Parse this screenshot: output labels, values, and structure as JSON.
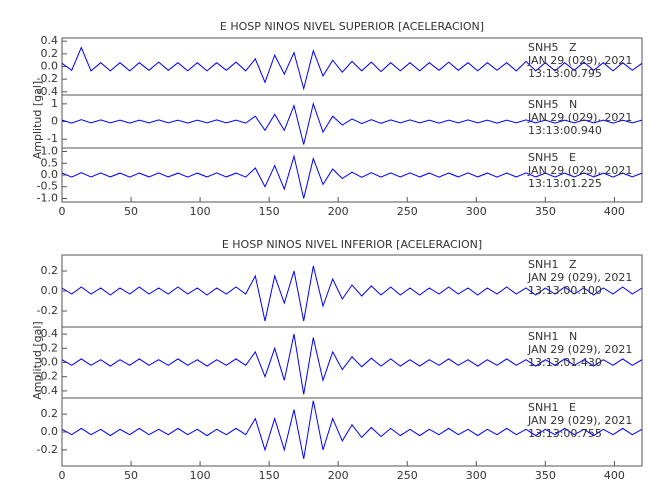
{
  "chart_data": [
    {
      "type": "line",
      "title": "E HOSP NINOS NIVEL SUPERIOR [ACELERACION]",
      "y_label": "Amplitud [gal]",
      "xlim": [
        0,
        420
      ],
      "xticks": [
        0,
        50,
        100,
        150,
        200,
        250,
        300,
        350,
        400
      ],
      "x": [
        0,
        7,
        14,
        21,
        28,
        35,
        42,
        49,
        56,
        63,
        70,
        77,
        84,
        91,
        98,
        105,
        112,
        119,
        126,
        133,
        140,
        147,
        154,
        161,
        168,
        175,
        182,
        189,
        196,
        203,
        210,
        217,
        224,
        231,
        238,
        245,
        252,
        259,
        266,
        273,
        280,
        287,
        294,
        301,
        308,
        315,
        322,
        329,
        336,
        343,
        350,
        357,
        364,
        371,
        378,
        385,
        392,
        399,
        406,
        413,
        420
      ],
      "panels": [
        {
          "station": "SNH5   Z",
          "date": "JAN 29 (029), 2021",
          "time": "13:13:00.795",
          "color": "#0000ff",
          "ylim": [
            -0.45,
            0.45
          ],
          "yticks": [
            {
              "value": -0.4,
              "label": "-0.4"
            },
            {
              "value": -0.2,
              "label": "-0.2"
            },
            {
              "value": 0,
              "label": "0.0"
            },
            0.2,
            0.4
          ],
          "values": [
            0.05,
            -0.06,
            0.3,
            -0.07,
            0.06,
            -0.07,
            0.06,
            -0.07,
            0.06,
            -0.06,
            0.07,
            -0.06,
            0.06,
            -0.07,
            0.06,
            -0.07,
            0.06,
            -0.06,
            0.07,
            -0.07,
            0.12,
            -0.25,
            0.18,
            -0.12,
            0.22,
            -0.35,
            0.25,
            -0.15,
            0.1,
            -0.09,
            0.08,
            -0.07,
            0.07,
            -0.08,
            0.06,
            -0.07,
            0.06,
            -0.07,
            0.06,
            -0.06,
            0.07,
            -0.06,
            0.06,
            -0.07,
            0.06,
            -0.06,
            0.06,
            -0.07,
            0.08,
            -0.07,
            0.06,
            -0.07,
            0.06,
            -0.06,
            0.07,
            -0.06,
            0.06,
            -0.07,
            0.06,
            -0.06,
            0.05
          ]
        },
        {
          "station": "SNH5   N",
          "date": "JAN 29 (029), 2021",
          "time": "13:13:00.940",
          "color": "#0000ff",
          "ylim": [
            -1.5,
            1.5
          ],
          "yticks": [
            -1,
            0,
            1
          ],
          "values": [
            0.08,
            -0.09,
            0.1,
            -0.08,
            0.09,
            -0.08,
            0.08,
            -0.09,
            0.08,
            -0.08,
            0.09,
            -0.08,
            0.08,
            -0.09,
            0.08,
            -0.08,
            0.09,
            -0.08,
            0.08,
            -0.09,
            0.3,
            -0.5,
            0.4,
            -0.5,
            0.9,
            -1.3,
            1.0,
            -0.6,
            0.3,
            -0.2,
            0.15,
            -0.12,
            0.1,
            -0.1,
            0.09,
            -0.08,
            0.09,
            -0.08,
            0.08,
            -0.09,
            0.08,
            -0.08,
            0.09,
            -0.08,
            0.08,
            -0.09,
            0.08,
            -0.08,
            0.09,
            -0.08,
            0.08,
            -0.09,
            0.08,
            -0.08,
            0.09,
            -0.08,
            0.08,
            -0.09,
            0.08,
            -0.08,
            0.08
          ]
        },
        {
          "station": "SNH5   E",
          "date": "JAN 29 (029), 2021",
          "time": "13:13:01.225",
          "color": "#0000ff",
          "ylim": [
            -1.15,
            1.15
          ],
          "yticks": [
            {
              "value": -1,
              "label": "-1.0"
            },
            -0.5,
            {
              "value": 0,
              "label": "0.0"
            },
            0.5,
            {
              "value": 1,
              "label": "1.0"
            }
          ],
          "values": [
            0.08,
            -0.09,
            0.1,
            -0.08,
            0.09,
            -0.08,
            0.08,
            -0.09,
            0.08,
            -0.08,
            0.09,
            -0.08,
            0.08,
            -0.09,
            0.08,
            -0.08,
            0.09,
            -0.08,
            0.08,
            -0.09,
            0.3,
            -0.5,
            0.4,
            -0.6,
            0.8,
            -1.0,
            0.7,
            -0.4,
            0.25,
            -0.15,
            0.12,
            -0.1,
            0.1,
            -0.09,
            0.09,
            -0.08,
            0.09,
            -0.08,
            0.08,
            -0.09,
            0.08,
            -0.08,
            0.09,
            -0.08,
            0.08,
            -0.09,
            0.08,
            -0.08,
            0.09,
            -0.08,
            0.08,
            -0.09,
            0.08,
            -0.08,
            0.09,
            -0.08,
            0.08,
            -0.09,
            0.08,
            -0.08,
            0.08
          ]
        }
      ]
    },
    {
      "type": "line",
      "title": "E HOSP NINOS NIVEL INFERIOR [ACELERACION]",
      "y_label": "Amplitud [gal]",
      "xlim": [
        0,
        420
      ],
      "xticks": [
        0,
        50,
        100,
        150,
        200,
        250,
        300,
        350,
        400
      ],
      "x": [
        0,
        7,
        14,
        21,
        28,
        35,
        42,
        49,
        56,
        63,
        70,
        77,
        84,
        91,
        98,
        105,
        112,
        119,
        126,
        133,
        140,
        147,
        154,
        161,
        168,
        175,
        182,
        189,
        196,
        203,
        210,
        217,
        224,
        231,
        238,
        245,
        252,
        259,
        266,
        273,
        280,
        287,
        294,
        301,
        308,
        315,
        322,
        329,
        336,
        343,
        350,
        357,
        364,
        371,
        378,
        385,
        392,
        399,
        406,
        413,
        420
      ],
      "panels": [
        {
          "station": "SNH1   Z",
          "date": "JAN 29 (029), 2021",
          "time": "13:13:00.100",
          "color": "#0000ff",
          "ylim": [
            -0.36,
            0.36
          ],
          "yticks": [
            {
              "value": -0.2,
              "label": "-0.2"
            },
            {
              "value": 0,
              "label": "0.0"
            },
            0.2
          ],
          "values": [
            0.03,
            -0.03,
            0.04,
            -0.03,
            0.03,
            -0.04,
            0.03,
            -0.03,
            0.04,
            -0.03,
            0.03,
            -0.03,
            0.04,
            -0.03,
            0.03,
            -0.04,
            0.03,
            -0.03,
            0.04,
            -0.03,
            0.15,
            -0.3,
            0.15,
            -0.12,
            0.2,
            -0.3,
            0.25,
            -0.15,
            0.12,
            -0.08,
            0.06,
            -0.05,
            0.05,
            -0.04,
            0.04,
            -0.04,
            0.03,
            -0.04,
            0.03,
            -0.03,
            0.04,
            -0.03,
            0.03,
            -0.04,
            0.03,
            -0.03,
            0.04,
            -0.03,
            0.03,
            -0.04,
            0.03,
            -0.03,
            0.04,
            -0.03,
            0.03,
            -0.04,
            0.03,
            -0.03,
            0.04,
            -0.03,
            0.03
          ]
        },
        {
          "station": "SNH1   N",
          "date": "JAN 29 (029), 2021",
          "time": "13:13:01.430",
          "color": "#0000ff",
          "ylim": [
            -0.5,
            0.5
          ],
          "yticks": [
            {
              "value": -0.4,
              "label": "-0.4"
            },
            {
              "value": -0.2,
              "label": "-0.2"
            },
            {
              "value": 0,
              "label": "0.0"
            },
            0.2,
            0.4
          ],
          "values": [
            0.04,
            -0.04,
            0.05,
            -0.04,
            0.04,
            -0.05,
            0.04,
            -0.04,
            0.05,
            -0.04,
            0.04,
            -0.04,
            0.05,
            -0.04,
            0.04,
            -0.05,
            0.04,
            -0.04,
            0.05,
            -0.04,
            0.15,
            -0.2,
            0.2,
            -0.25,
            0.4,
            -0.45,
            0.35,
            -0.25,
            0.15,
            -0.1,
            0.08,
            -0.06,
            0.06,
            -0.05,
            0.05,
            -0.05,
            0.04,
            -0.05,
            0.04,
            -0.04,
            0.05,
            -0.04,
            0.04,
            -0.05,
            0.04,
            -0.04,
            0.05,
            -0.04,
            0.04,
            -0.05,
            0.04,
            -0.04,
            0.05,
            -0.04,
            0.04,
            -0.05,
            0.04,
            -0.04,
            0.05,
            -0.04,
            0.04
          ]
        },
        {
          "station": "SNH1   E",
          "date": "JAN 29 (029), 2021",
          "time": "13:13:00.755",
          "color": "#0000ff",
          "ylim": [
            -0.38,
            0.38
          ],
          "yticks": [
            {
              "value": -0.2,
              "label": "-0.2"
            },
            {
              "value": 0,
              "label": "0.0"
            },
            0.2
          ],
          "values": [
            0.03,
            -0.03,
            0.04,
            -0.03,
            0.03,
            -0.04,
            0.03,
            -0.03,
            0.04,
            -0.03,
            0.03,
            -0.03,
            0.04,
            -0.03,
            0.03,
            -0.04,
            0.03,
            -0.03,
            0.04,
            -0.03,
            0.15,
            -0.2,
            0.15,
            -0.2,
            0.25,
            -0.3,
            0.35,
            -0.2,
            0.15,
            -0.1,
            0.08,
            -0.06,
            0.05,
            -0.05,
            0.04,
            -0.04,
            0.03,
            -0.04,
            0.03,
            -0.03,
            0.04,
            -0.03,
            0.03,
            -0.04,
            0.03,
            -0.03,
            0.04,
            -0.03,
            0.03,
            -0.04,
            0.03,
            -0.03,
            0.04,
            -0.03,
            0.03,
            -0.04,
            0.03,
            -0.03,
            0.04,
            -0.03,
            0.03
          ]
        }
      ]
    }
  ]
}
